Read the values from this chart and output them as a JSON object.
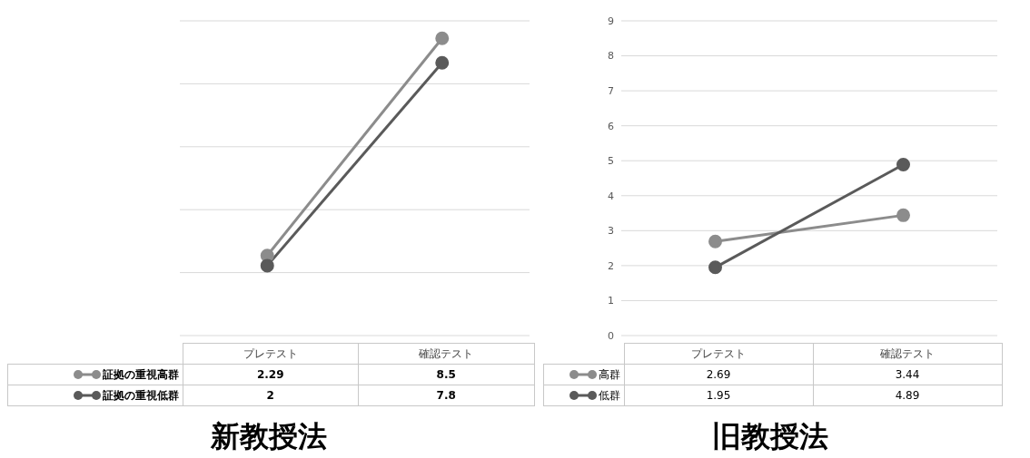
{
  "chart_data": [
    {
      "type": "line",
      "title": "新教授法",
      "categories": [
        "プレテスト",
        "確認テスト"
      ],
      "series": [
        {
          "name": "証拠の重視高群",
          "color": "#8c8c8c",
          "values": [
            2.29,
            8.5
          ]
        },
        {
          "name": "証拠の重視低群",
          "color": "#5a5a5a",
          "values": [
            2,
            7.8
          ]
        }
      ],
      "ylim": [
        0,
        9
      ],
      "yticks": [
        {
          "value": 0,
          "label": null
        },
        {
          "value": 1.8,
          "label": null
        },
        {
          "value": 3.6,
          "label": null
        },
        {
          "value": 5.4,
          "label": null
        },
        {
          "value": 7.2,
          "label": null
        },
        {
          "value": 9,
          "label": null
        }
      ],
      "grid": "y",
      "tick_labels": false,
      "legend": "bottom",
      "data_labels": true,
      "marker": "circle"
    },
    {
      "type": "line",
      "title": "旧教授法",
      "categories": [
        "プレテスト",
        "確認テスト"
      ],
      "series": [
        {
          "name": "高群",
          "color": "#8c8c8c",
          "values": [
            2.69,
            3.44
          ]
        },
        {
          "name": "低群",
          "color": "#5a5a5a",
          "values": [
            1.95,
            4.89
          ]
        }
      ],
      "ylim": [
        0,
        9
      ],
      "yticks": [
        0,
        1,
        2,
        3,
        4,
        5,
        6,
        7,
        8,
        9
      ],
      "grid": "y",
      "tick_labels": "y",
      "legend": "bottom",
      "data_labels": true,
      "marker": "circle"
    }
  ]
}
